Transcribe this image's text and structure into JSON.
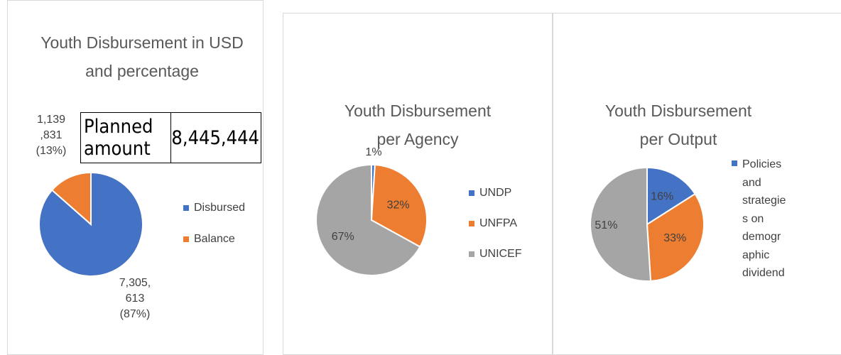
{
  "chart_data": [
    {
      "type": "pie",
      "title": "Youth Disbursement in USD and percentage",
      "categories": [
        "Disbursed",
        "Balance"
      ],
      "values": [
        7305613,
        1139831
      ],
      "value_labels": [
        "7,305,613 (87%)",
        "1,139,831 (13%)"
      ],
      "colors": [
        "#4472c4",
        "#ed7d31"
      ],
      "table": {
        "label": "Planned amount",
        "value": "8,445,444"
      }
    },
    {
      "type": "pie",
      "title": "Youth Disbursement per Agency",
      "categories": [
        "UNDP",
        "UNFPA",
        "UNICEF"
      ],
      "values": [
        1,
        32,
        67
      ],
      "value_labels": [
        "1%",
        "32%",
        "67%"
      ],
      "colors": [
        "#4472c4",
        "#ed7d31",
        "#a5a5a5"
      ]
    },
    {
      "type": "pie",
      "title": "Youth Disbursement per Output",
      "categories": [
        "Policies and strategies on demographic dividend",
        null,
        null
      ],
      "values": [
        16,
        33,
        51
      ],
      "value_labels": [
        "16%",
        "33%",
        "51%"
      ],
      "colors": [
        "#4472c4",
        "#ed7d31",
        "#a5a5a5"
      ]
    }
  ]
}
